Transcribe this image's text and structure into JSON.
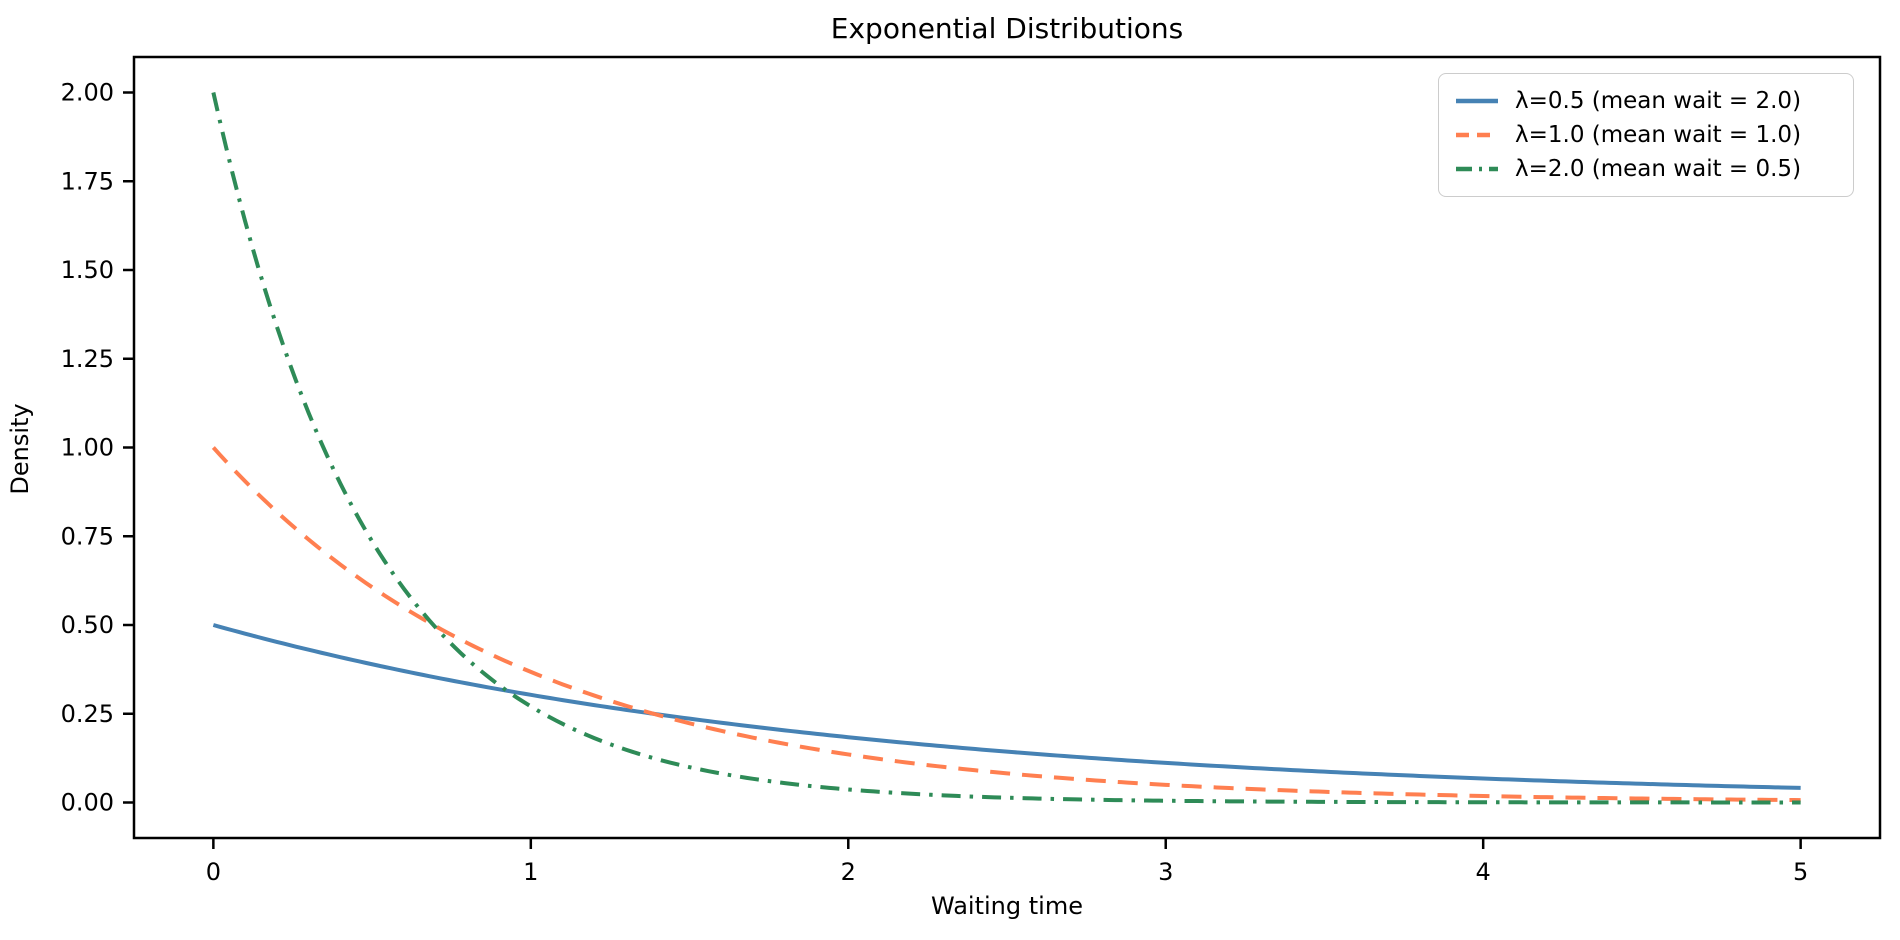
{
  "chart_data": {
    "type": "line",
    "title": "Exponential Distributions",
    "xlabel": "Waiting time",
    "ylabel": "Density",
    "xlim": [
      -0.25,
      5.25
    ],
    "ylim": [
      -0.1,
      2.1
    ],
    "xticks": [
      0,
      1,
      2,
      3,
      4,
      5
    ],
    "xtick_labels": [
      "0",
      "1",
      "2",
      "3",
      "4",
      "5"
    ],
    "yticks": [
      0,
      0.25,
      0.5,
      0.75,
      1.0,
      1.25,
      1.5,
      1.75,
      2.0
    ],
    "ytick_labels": [
      "0.00",
      "0.25",
      "0.50",
      "0.75",
      "1.00",
      "1.25",
      "1.50",
      "1.75",
      "2.00"
    ],
    "grid": false,
    "legend_position": "upper right",
    "x_samples": [
      0,
      0.25,
      0.5,
      0.75,
      1.0,
      1.25,
      1.5,
      1.75,
      2.0,
      2.25,
      2.5,
      2.75,
      3.0,
      3.25,
      3.5,
      3.75,
      4.0,
      4.25,
      4.5,
      4.75,
      5.0
    ],
    "series": [
      {
        "name": "λ=0.5 (mean wait = 2.0)",
        "lambda": 0.5,
        "mean_wait": 2.0,
        "color": "#4682B4",
        "style": "solid",
        "values": [
          0.5,
          0.4412,
          0.3894,
          0.3436,
          0.3033,
          0.2676,
          0.2362,
          0.2084,
          0.1839,
          0.1623,
          0.1433,
          0.1264,
          0.1116,
          0.0985,
          0.0869,
          0.0767,
          0.0677,
          0.0597,
          0.0527,
          0.0465,
          0.041
        ]
      },
      {
        "name": "λ=1.0 (mean wait = 1.0)",
        "lambda": 1.0,
        "mean_wait": 1.0,
        "color": "#FF7F50",
        "style": "dashed",
        "values": [
          1.0,
          0.7788,
          0.6065,
          0.4724,
          0.3679,
          0.2865,
          0.2231,
          0.1738,
          0.1353,
          0.1054,
          0.0821,
          0.0639,
          0.0498,
          0.0388,
          0.0302,
          0.0235,
          0.0183,
          0.0143,
          0.0111,
          0.0087,
          0.0067
        ]
      },
      {
        "name": "λ=2.0 (mean wait = 0.5)",
        "lambda": 2.0,
        "mean_wait": 0.5,
        "color": "#2E8B57",
        "style": "dashdot",
        "values": [
          2.0,
          1.2131,
          0.7358,
          0.4463,
          0.2707,
          0.1642,
          0.0996,
          0.0604,
          0.0366,
          0.0222,
          0.0135,
          0.0082,
          0.005,
          0.003,
          0.0018,
          0.0011,
          0.0007,
          0.0004,
          0.0002,
          0.0002,
          0.0001
        ]
      }
    ]
  }
}
